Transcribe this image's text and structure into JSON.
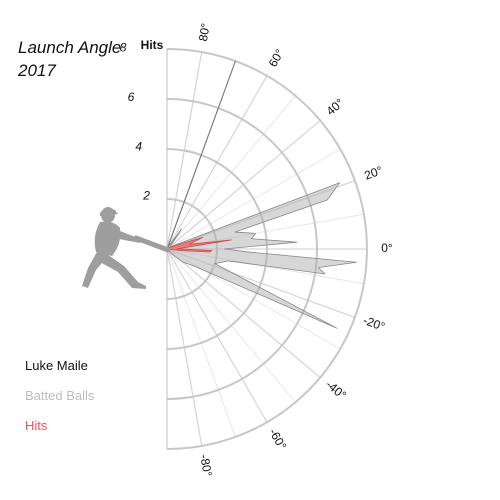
{
  "chart_data": {
    "type": "polar-area",
    "title": "Launch Angle",
    "subtitle": "2017",
    "legend": {
      "player": "Luke Maile",
      "batted": "Batted Balls",
      "hits": "Hits"
    },
    "radial_axis": {
      "label": "Hits",
      "ticks": [
        2,
        4,
        6,
        8
      ],
      "max": 8
    },
    "angle_ticks": [
      80,
      60,
      40,
      20,
      0,
      -20,
      -40,
      -60,
      -80
    ],
    "angle_labels": [
      "80°",
      "60°",
      "40°",
      "20°",
      "0°",
      "-20°",
      "-40°",
      "-60°",
      "-80°"
    ],
    "series": [
      {
        "name": "Batted Balls",
        "points": [
          {
            "angle": 70,
            "value": 8.0
          },
          {
            "angle": 62,
            "value": 0.1
          },
          {
            "angle": 54,
            "value": 1.0
          },
          {
            "angle": 42,
            "value": 0.2
          },
          {
            "angle": 30,
            "value": 0.2
          },
          {
            "angle": 21,
            "value": 7.4
          },
          {
            "angle": 17,
            "value": 6.7
          },
          {
            "angle": 14,
            "value": 2.8
          },
          {
            "angle": 10,
            "value": 3.6
          },
          {
            "angle": 7,
            "value": 3.4
          },
          {
            "angle": 3,
            "value": 5.2
          },
          {
            "angle": 0,
            "value": 2.3
          },
          {
            "angle": -2,
            "value": 3.2
          },
          {
            "angle": -4,
            "value": 7.6
          },
          {
            "angle": -7,
            "value": 6.1
          },
          {
            "angle": -9,
            "value": 6.4
          },
          {
            "angle": -11,
            "value": 2.5
          },
          {
            "angle": -17,
            "value": 2.0
          },
          {
            "angle": -25,
            "value": 7.5
          },
          {
            "angle": -32,
            "value": 1.3
          },
          {
            "angle": -40,
            "value": 0.8
          },
          {
            "angle": -45,
            "value": 0.3
          }
        ]
      },
      {
        "name": "Hits",
        "points": [
          {
            "angle": 37,
            "value": 0.1
          },
          {
            "angle": 18,
            "value": 1.5
          },
          {
            "angle": 12,
            "value": 0.9
          },
          {
            "angle": 8,
            "value": 2.6
          },
          {
            "angle": 1,
            "value": 0.4
          },
          {
            "angle": -2,
            "value": 1.8
          },
          {
            "angle": -4,
            "value": 1.7
          },
          {
            "angle": -7,
            "value": 0.5
          }
        ]
      }
    ]
  },
  "icons": {
    "batter": "batter-silhouette-icon"
  }
}
